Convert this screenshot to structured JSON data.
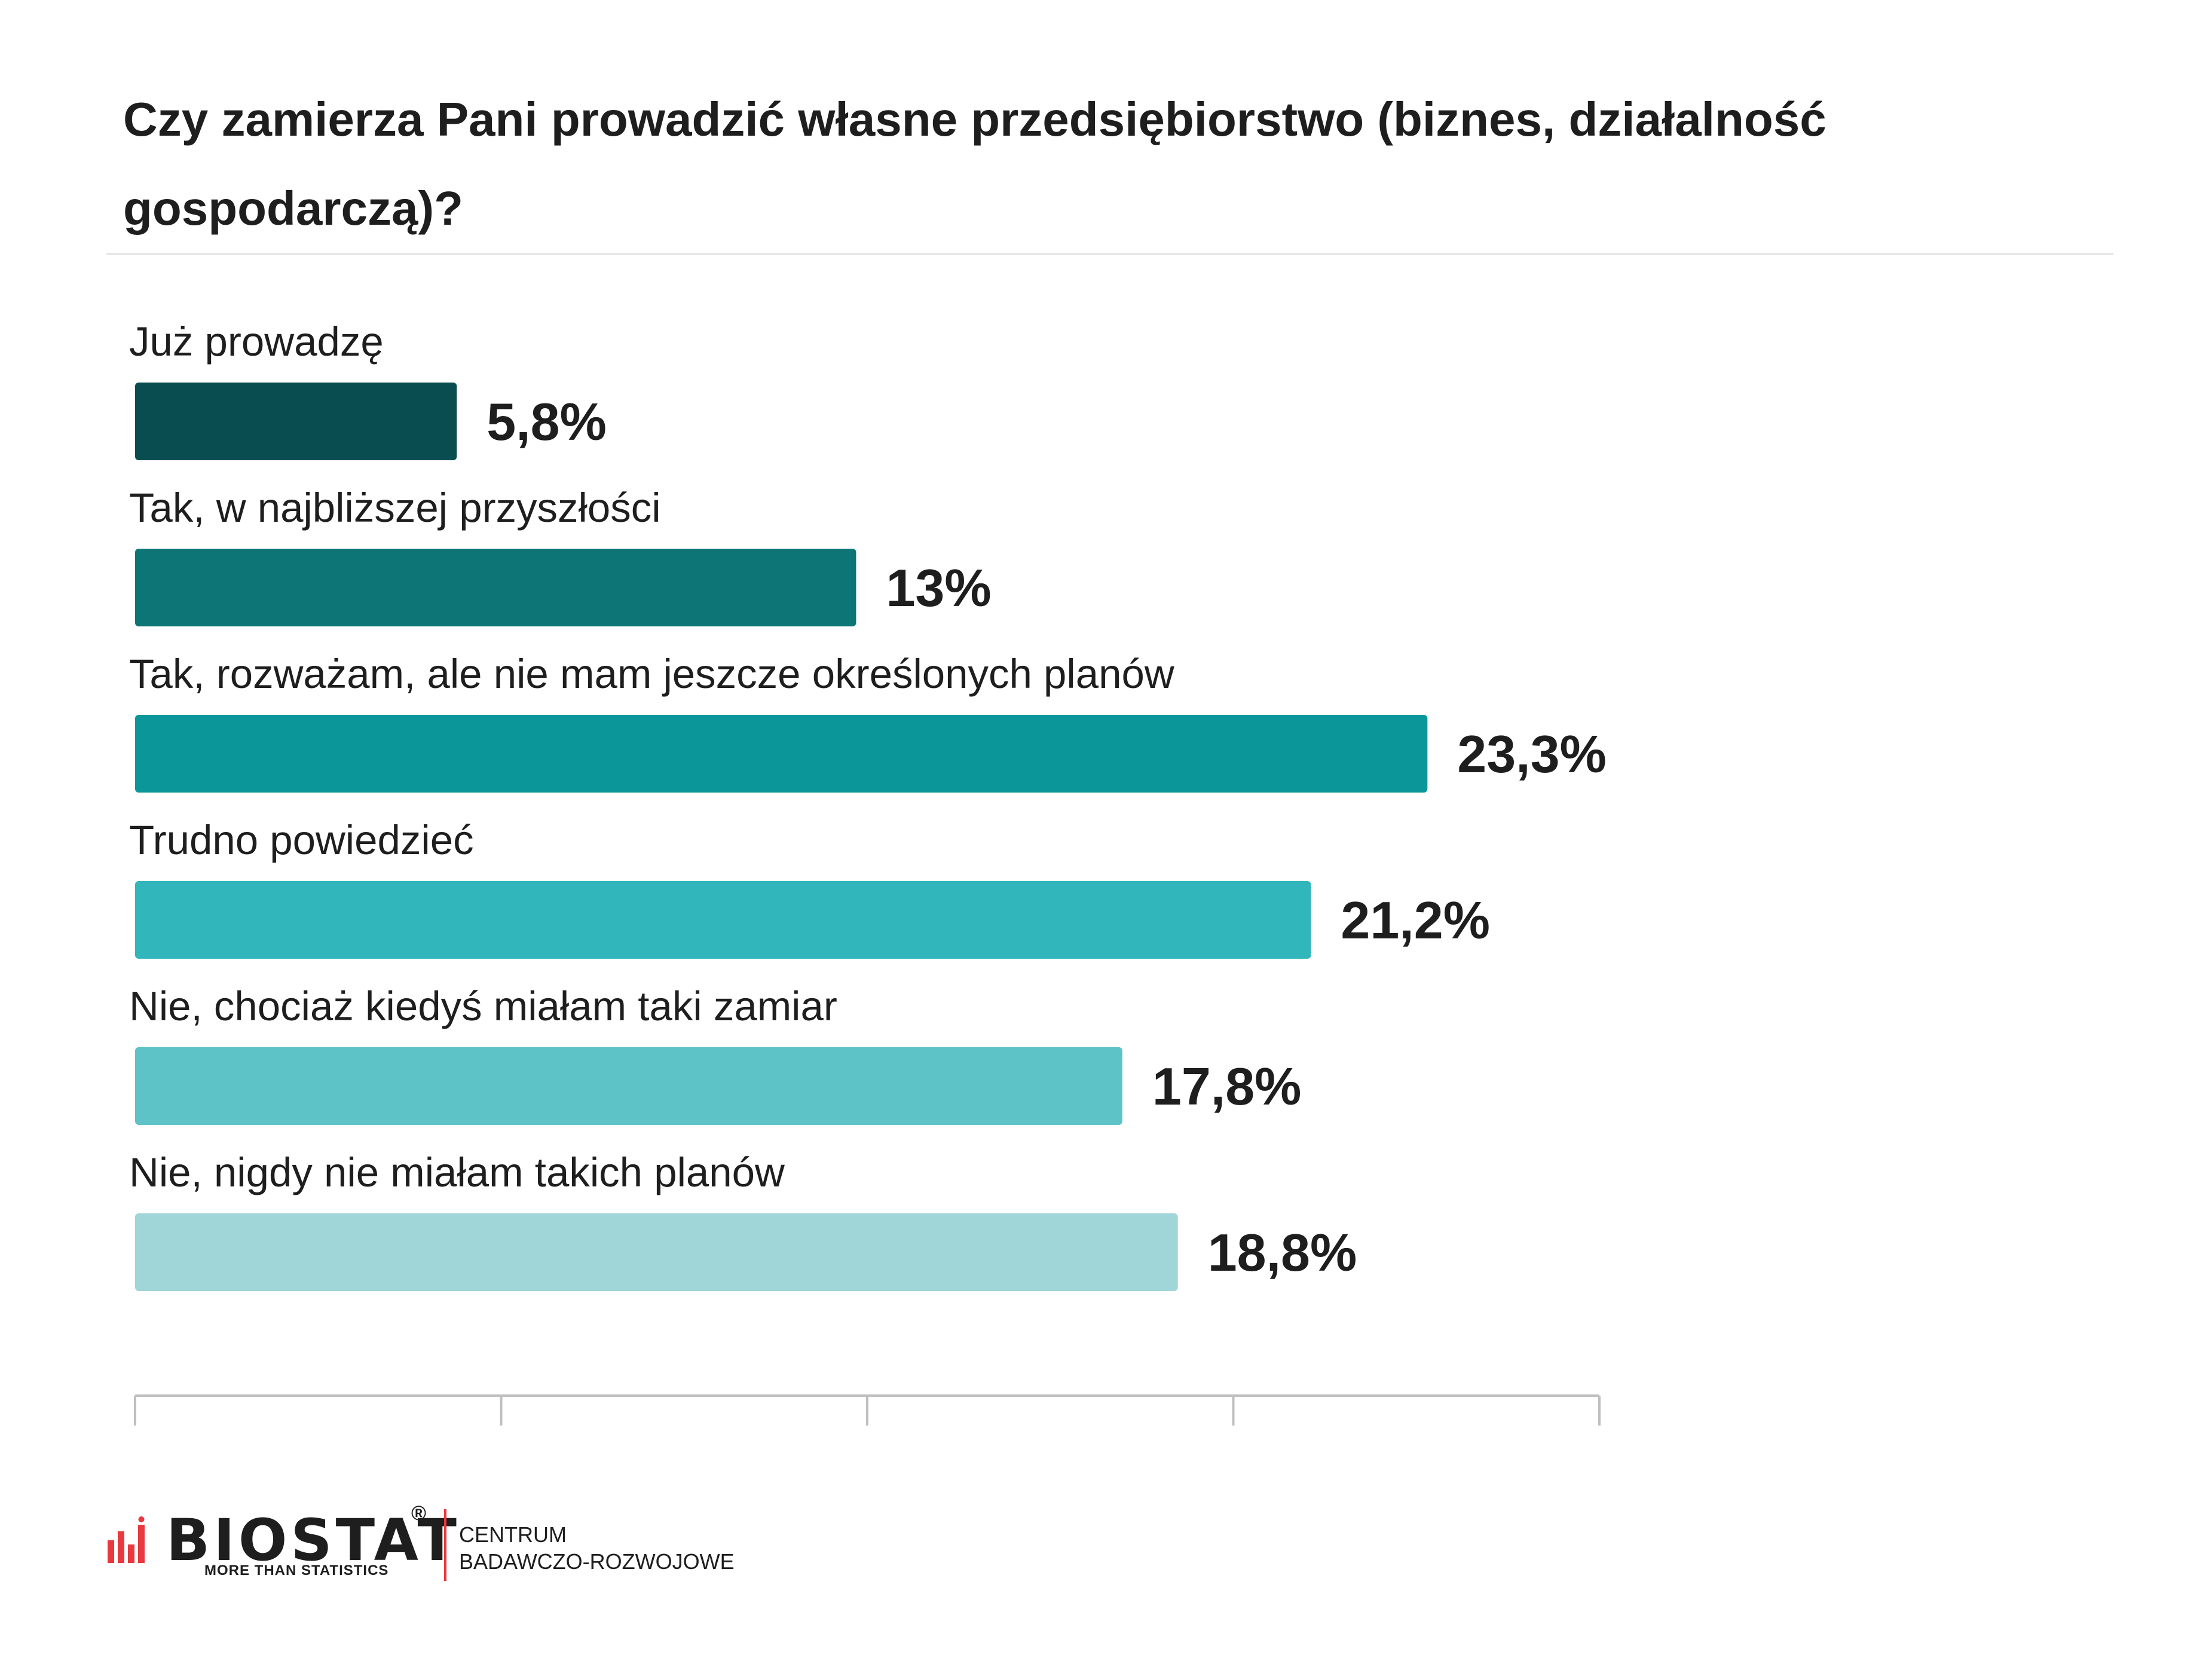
{
  "title": "Czy zamierza Pani prowadzić własne przedsiębiorstwo (biznes, działalność gospodarczą)?",
  "chart_data": {
    "type": "bar",
    "orientation": "horizontal",
    "title": "Czy zamierza Pani prowadzić własne przedsiębiorstwo (biznes, działalność gospodarczą)?",
    "categories": [
      "Już prowadzę",
      "Tak, w najbliższej przyszłości",
      "Tak, rozważam, ale nie mam jeszcze określonych planów",
      "Trudno powiedzieć",
      "Nie, chociaż kiedyś miałam taki zamiar",
      "Nie, nigdy nie miałam takich planów"
    ],
    "values": [
      5.8,
      13,
      23.3,
      21.2,
      17.8,
      18.8
    ],
    "value_labels": [
      "5,8%",
      "13%",
      "23,3%",
      "21,2%",
      "17,8%",
      "18,8%"
    ],
    "colors": [
      "#0a4d50",
      "#0d7576",
      "#0b979a",
      "#31b6bb",
      "#5ec3c6",
      "#a0d6d8"
    ],
    "xlim": [
      0,
      26.4
    ],
    "xlabel": "",
    "ylabel": "",
    "grid": false,
    "legend": "none"
  },
  "footer": {
    "brand": "BIOSTAT",
    "registered": "®",
    "tagline": "MORE THAN STATISTICS",
    "unit_line1": "CENTRUM",
    "unit_line2": "BADAWCZO-ROZWOJOWE",
    "accent_color": "#e8393f"
  }
}
